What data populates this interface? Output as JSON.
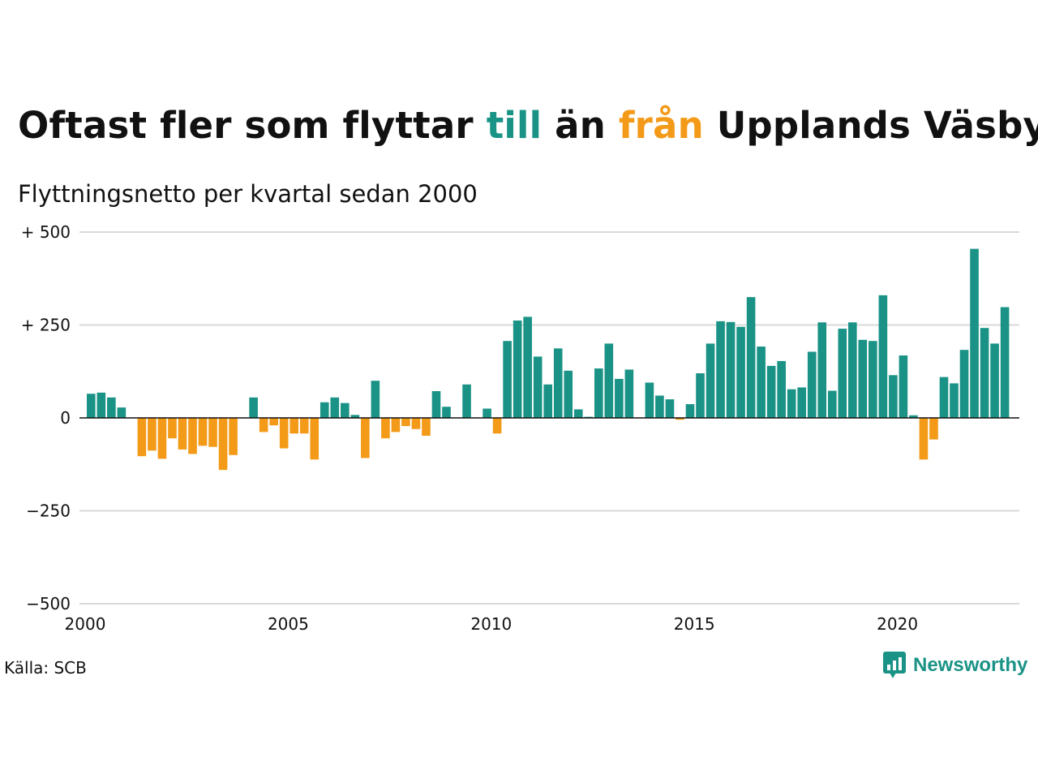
{
  "title": {
    "part1": "Oftast fler som flyttar ",
    "highlight_to": "till",
    "part2": " än ",
    "highlight_from": "från",
    "part3": " Upplands Väsby"
  },
  "subtitle": "Flyttningsnetto per kvartal sedan 2000",
  "source": "Källa: SCB",
  "brand": "Newsworthy",
  "colors": {
    "positive": "#1a9386",
    "negative": "#f39a18",
    "grid": "#d9d9d9",
    "baseline": "#111111"
  },
  "chart_data": {
    "type": "bar",
    "title": "Oftast fler som flyttar till än från Upplands Väsby",
    "subtitle": "Flyttningsnetto per kvartal sedan 2000",
    "x_start_year": 2000,
    "periods_per_year": 4,
    "x_ticks": [
      "2000",
      "2005",
      "2010",
      "2015",
      "2020"
    ],
    "y_ticks": [
      "+ 500",
      "+ 250",
      "0",
      "−250",
      "−500"
    ],
    "y_tick_values": [
      500,
      250,
      0,
      -250,
      -500
    ],
    "ylim": [
      -500,
      500
    ],
    "grid": true,
    "values": [
      65,
      68,
      55,
      28,
      0,
      -103,
      -88,
      -110,
      -55,
      -85,
      -97,
      -75,
      -78,
      -140,
      -100,
      0,
      55,
      -38,
      -20,
      -82,
      -42,
      -42,
      -112,
      42,
      55,
      40,
      8,
      -108,
      100,
      -55,
      -38,
      -22,
      -30,
      -48,
      72,
      30,
      0,
      90,
      0,
      25,
      -42,
      207,
      262,
      272,
      165,
      90,
      187,
      127,
      23,
      3,
      133,
      200,
      105,
      130,
      0,
      95,
      60,
      50,
      -5,
      37,
      120,
      200,
      260,
      258,
      245,
      325,
      192,
      140,
      153,
      77,
      82,
      178,
      257,
      73,
      240,
      257,
      210,
      207,
      330,
      115,
      168,
      7,
      -112,
      -58,
      110,
      93,
      183,
      455,
      242,
      200,
      298
    ]
  }
}
